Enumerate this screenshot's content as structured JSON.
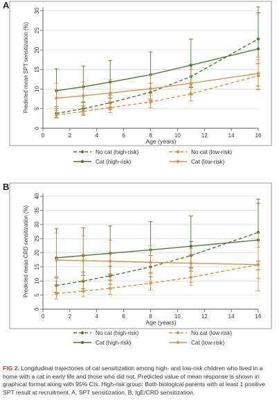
{
  "colors": {
    "green": "#4a7a2f",
    "orange": "#d9923f",
    "frame": "#9a9a9a",
    "grid": "#d8d8d8"
  },
  "caption": {
    "lead": "FIG 2.",
    "text": "Longitudinal trajectories of cat sensitization among high- and low-risk children who lived in a home with a cat in early life and those who did not. Predicted value of mean response is shown in graphical format along with 95% CIs. High-risk group: Both biological parents with at least 1 positive SPT result at recruitment. A, SPT sensitization. B, IgE/CRD sensitization."
  },
  "legend_entries": [
    "No cat (high-risk)",
    "No cat (low-risk)",
    "Cat (high-risk)",
    "Cat (low-risk)"
  ],
  "chart_data": [
    {
      "panel": "A",
      "type": "line",
      "xlabel": "Age (years)",
      "ylabel": "Predicted mean SPT sensitization (%)",
      "xlim": [
        0,
        16
      ],
      "ylim": [
        0,
        31
      ],
      "xticks": [
        0,
        2,
        4,
        6,
        8,
        10,
        12,
        14,
        16
      ],
      "yticks": [
        0,
        5,
        10,
        15,
        20,
        25,
        30
      ],
      "x": [
        1,
        3,
        5,
        8,
        11,
        16
      ],
      "grid": true,
      "legend_position": "bottom",
      "series": [
        {
          "name": "No cat (high-risk)",
          "color": "#4a7a2f",
          "dash": true,
          "values": [
            3.8,
            5.0,
            6.5,
            9.2,
            13.2,
            22.8
          ],
          "ci_low": [
            2.8,
            3.6,
            4.8,
            7.2,
            10.4,
            16.5
          ],
          "ci_high": [
            5.0,
            6.6,
            8.5,
            11.5,
            16.2,
            29.5
          ]
        },
        {
          "name": "No cat (low-risk)",
          "color": "#d9923f",
          "dash": true,
          "values": [
            3.4,
            4.3,
            5.3,
            6.7,
            8.8,
            13.4
          ],
          "ci_low": [
            2.6,
            3.3,
            4.0,
            5.2,
            7.0,
            9.8
          ],
          "ci_high": [
            4.5,
            5.6,
            6.8,
            8.5,
            11.0,
            17.5
          ]
        },
        {
          "name": "Cat (high-risk)",
          "color": "#4a7a2f",
          "dash": false,
          "values": [
            9.6,
            10.6,
            11.8,
            13.7,
            16.1,
            20.3
          ],
          "ci_low": [
            5.5,
            6.7,
            7.7,
            9.0,
            10.5,
            10.8
          ],
          "ci_high": [
            15.2,
            15.9,
            17.3,
            19.5,
            22.8,
            31.0
          ]
        },
        {
          "name": "Cat (low-risk)",
          "color": "#d9923f",
          "dash": false,
          "values": [
            7.7,
            8.3,
            9.0,
            10.1,
            11.5,
            14.0
          ],
          "ci_low": [
            5.0,
            5.8,
            6.5,
            7.5,
            8.5,
            10.0
          ],
          "ci_high": [
            11.5,
            11.8,
            12.4,
            13.6,
            15.0,
            18.2
          ]
        }
      ]
    },
    {
      "panel": "B",
      "type": "line",
      "xlabel": "Age (years)",
      "ylabel": "Predicted mean CRD sensitization (%)",
      "xlim": [
        0,
        16
      ],
      "ylim": [
        0,
        41
      ],
      "xticks": [
        0,
        2,
        4,
        6,
        8,
        10,
        12,
        14,
        16
      ],
      "yticks": [
        0,
        5,
        10,
        15,
        20,
        25,
        30,
        35,
        40
      ],
      "x": [
        1,
        3,
        5,
        8,
        11,
        16
      ],
      "grid": true,
      "legend_position": "bottom",
      "series": [
        {
          "name": "No cat (high-risk)",
          "color": "#4a7a2f",
          "dash": true,
          "values": [
            8.4,
            10.0,
            11.8,
            15.0,
            19.0,
            27.2
          ],
          "ci_low": [
            6.0,
            7.3,
            8.8,
            11.5,
            14.6,
            17.0
          ],
          "ci_high": [
            11.5,
            13.2,
            15.2,
            19.0,
            24.0,
            39.0
          ]
        },
        {
          "name": "No cat (low-risk)",
          "color": "#d9923f",
          "dash": true,
          "values": [
            5.5,
            6.4,
            7.4,
            9.2,
            11.3,
            15.8
          ],
          "ci_low": [
            3.6,
            4.4,
            5.3,
            6.8,
            8.5,
            11.0
          ],
          "ci_high": [
            8.5,
            9.5,
            10.5,
            12.5,
            15.0,
            22.0
          ]
        },
        {
          "name": "Cat (high-risk)",
          "color": "#4a7a2f",
          "dash": false,
          "values": [
            18.2,
            19.0,
            19.8,
            21.0,
            22.3,
            24.5
          ],
          "ci_low": [
            11.0,
            12.0,
            12.5,
            13.0,
            13.5,
            14.0
          ],
          "ci_high": [
            28.5,
            28.8,
            29.5,
            31.0,
            33.0,
            37.5
          ]
        },
        {
          "name": "Cat (low-risk)",
          "color": "#d9923f",
          "dash": false,
          "values": [
            17.4,
            17.2,
            17.0,
            16.6,
            16.3,
            15.8
          ],
          "ci_low": [
            10.0,
            10.2,
            10.2,
            10.0,
            9.5,
            6.5
          ],
          "ci_high": [
            27.0,
            26.0,
            24.5,
            22.5,
            21.5,
            27.0
          ]
        }
      ]
    }
  ]
}
